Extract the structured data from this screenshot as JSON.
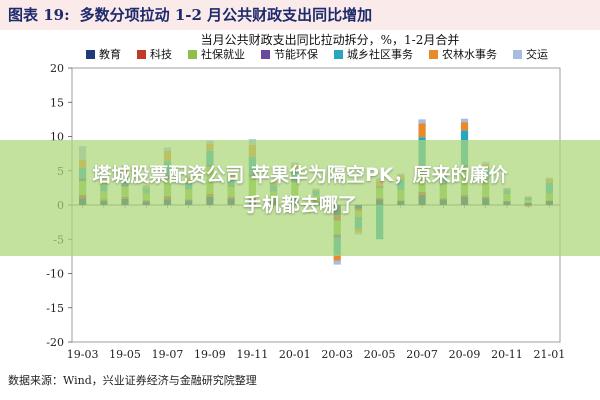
{
  "figure": {
    "label": "图表 19:",
    "title": "多数分项拉动 1-2 月公共财政支出同比增加"
  },
  "source": "数据来源：Wind，兴业证券经济与金融研究院整理",
  "banner": {
    "line1": "塔城股票配资公司 苹果华为隔空PK，原来的廉价",
    "line2": "手机都去哪了"
  },
  "colors": {
    "教育": "#1f3a7a",
    "科技": "#c0392b",
    "社保就业": "#8dbf4a",
    "节能环保": "#6a4a9c",
    "城乡社区事务": "#2aa5c0",
    "农林水事务": "#e8892a",
    "交运": "#a8bce0"
  },
  "chart_data": {
    "type": "bar",
    "stacked": true,
    "title": "当月公共财政支出同比拉动拆分，%，1-2月合并",
    "xlabel": "",
    "ylabel": "",
    "ylim": [
      -20,
      20
    ],
    "yticks": [
      20,
      15,
      10,
      5,
      0,
      -5,
      -10,
      -15,
      -20
    ],
    "grid": false,
    "legend_position": "top",
    "categories": [
      "19-03",
      "19-04",
      "19-05",
      "19-06",
      "19-07",
      "19-08",
      "19-09",
      "19-10",
      "19-11",
      "19-12",
      "20-01",
      "20-02",
      "20-03",
      "20-04",
      "20-05",
      "20-06",
      "20-07",
      "20-08",
      "20-09",
      "20-10",
      "20-11",
      "20-12",
      "21-01"
    ],
    "x_ticklabels": [
      "19-03",
      "19-05",
      "19-07",
      "19-09",
      "19-11",
      "20-01",
      "20-03",
      "20-05",
      "20-07",
      "20-09",
      "20-11",
      "21-01"
    ],
    "series": [
      {
        "name": "教育",
        "values": [
          1.0,
          0.6,
          0.9,
          0.5,
          0.8,
          0.7,
          1.2,
          0.9,
          0.8,
          0.6,
          1.0,
          0.5,
          -1.5,
          -0.5,
          0.8,
          0.6,
          1.5,
          0.8,
          1.2,
          1.0,
          0.5,
          0.3,
          0.6
        ]
      },
      {
        "name": "科技",
        "values": [
          0.5,
          0.2,
          0.3,
          0.2,
          0.5,
          0.1,
          0.4,
          0.3,
          0.3,
          0.2,
          0.3,
          0.1,
          -0.8,
          -0.3,
          0.2,
          0.1,
          0.4,
          0.2,
          0.3,
          0.2,
          0.1,
          -0.2,
          0.1
        ]
      },
      {
        "name": "社保就业",
        "values": [
          2.0,
          1.2,
          1.5,
          1.0,
          2.5,
          1.5,
          4.0,
          1.5,
          3.0,
          1.2,
          2.0,
          0.8,
          -2.0,
          -1.0,
          1.5,
          1.5,
          3.5,
          2.0,
          4.0,
          2.5,
          1.0,
          0.5,
          1.0
        ]
      },
      {
        "name": "节能环保",
        "values": [
          0.4,
          0.1,
          0.3,
          0.1,
          0.6,
          0.1,
          0.3,
          0.2,
          0.4,
          0.1,
          0.2,
          0.1,
          -0.5,
          -0.2,
          0.2,
          0.1,
          0.5,
          0.3,
          0.4,
          0.2,
          0.1,
          0.1,
          0.1
        ]
      },
      {
        "name": "城乡社区事务",
        "values": [
          1.5,
          0.8,
          1.2,
          0.6,
          2.0,
          1.0,
          2.0,
          1.0,
          2.5,
          0.8,
          1.5,
          0.6,
          -2.5,
          -1.5,
          -5.0,
          1.5,
          4.0,
          1.0,
          5.0,
          1.5,
          0.5,
          0.2,
          1.5
        ]
      },
      {
        "name": "农林水事务",
        "values": [
          1.2,
          0.4,
          0.8,
          0.3,
          1.5,
          0.6,
          1.0,
          0.4,
          1.8,
          0.4,
          0.8,
          0.2,
          -0.8,
          -0.5,
          0.8,
          0.6,
          2.0,
          0.6,
          1.2,
          0.6,
          0.2,
          0.1,
          0.5
        ]
      },
      {
        "name": "交运",
        "values": [
          2.0,
          0.5,
          0.8,
          0.2,
          0.5,
          0.3,
          0.5,
          0.2,
          0.8,
          0.2,
          0.4,
          0.1,
          -0.6,
          -0.3,
          0.4,
          0.2,
          0.6,
          0.3,
          0.5,
          0.3,
          0.1,
          0.1,
          0.2
        ]
      }
    ]
  }
}
